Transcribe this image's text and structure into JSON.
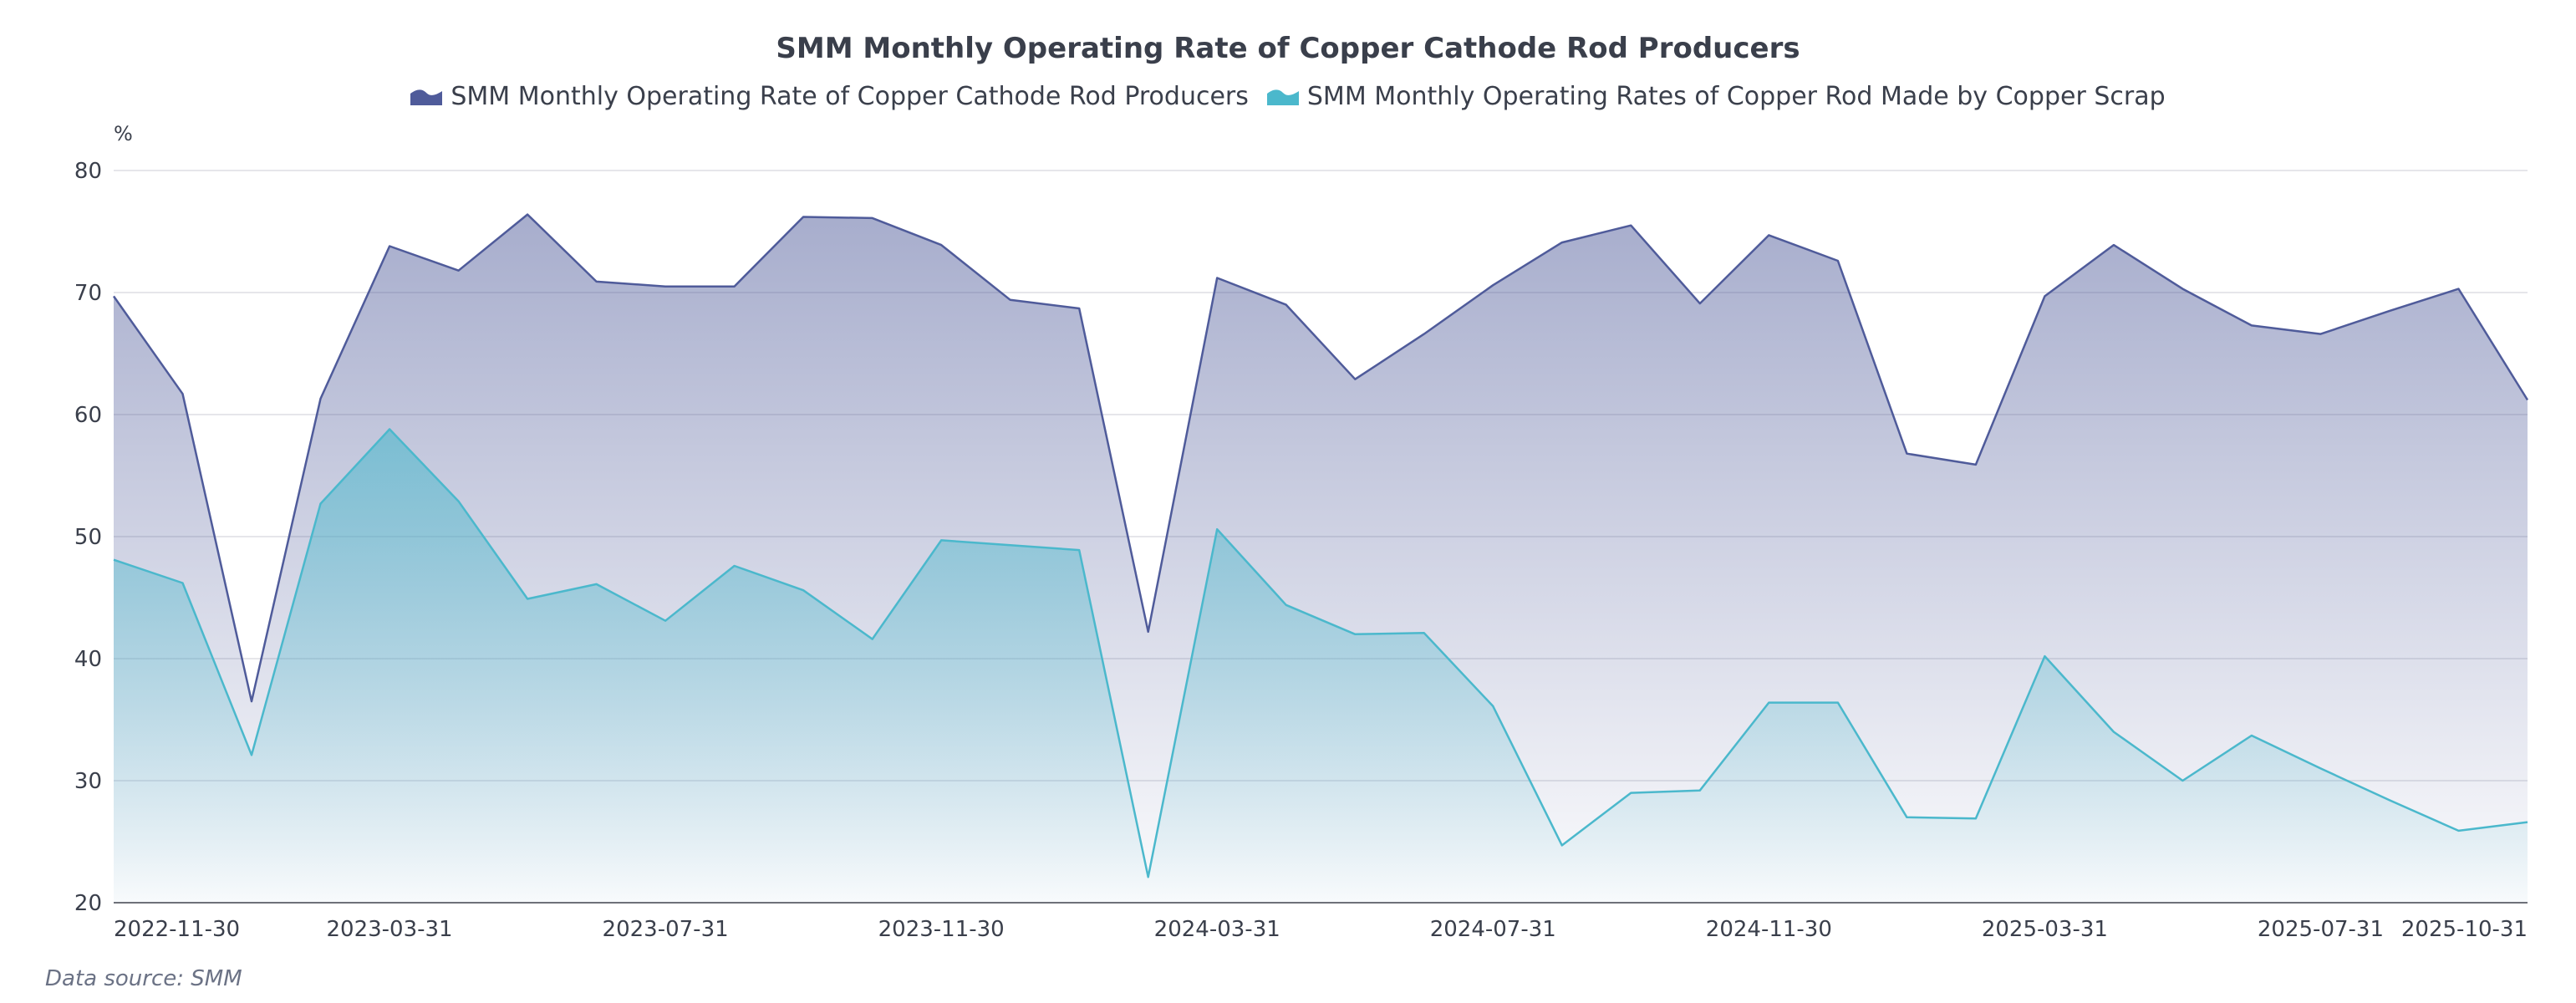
{
  "chart_data": {
    "type": "area",
    "title": "SMM Monthly Operating Rate of Copper Cathode Rod Producers",
    "ylabel": "%",
    "xlabel": "",
    "ylim": [
      20,
      80
    ],
    "yticks": [
      20,
      30,
      40,
      50,
      60,
      70,
      80
    ],
    "grid": true,
    "legend_position": "top-center",
    "source": "Data source:  SMM",
    "x": [
      "2022-11-30",
      "2022-12-31",
      "2023-01-31",
      "2023-02-28",
      "2023-03-31",
      "2023-04-30",
      "2023-05-31",
      "2023-06-30",
      "2023-07-31",
      "2023-08-31",
      "2023-09-30",
      "2023-10-31",
      "2023-11-30",
      "2023-12-31",
      "2024-01-31",
      "2024-02-29",
      "2024-03-31",
      "2024-04-30",
      "2024-05-31",
      "2024-06-30",
      "2024-07-31",
      "2024-08-31",
      "2024-09-30",
      "2024-10-31",
      "2024-11-30",
      "2024-12-31",
      "2025-01-31",
      "2025-02-28",
      "2025-03-31",
      "2025-04-30",
      "2025-05-31",
      "2025-06-30",
      "2025-07-31",
      "2025-08-31",
      "2025-09-30",
      "2025-10-31"
    ],
    "xtick_labels": [
      "2022-11-30",
      "2023-03-31",
      "2023-07-31",
      "2023-11-30",
      "2024-03-31",
      "2024-07-31",
      "2024-11-30",
      "2025-03-31",
      "2025-07-31",
      "2025-10-31"
    ],
    "series": [
      {
        "name": "SMM Monthly Operating Rate of Copper Cathode Rod Producers",
        "color": "#4f5b9a",
        "values": [
          69.7,
          61.7,
          36.5,
          61.3,
          73.8,
          71.8,
          76.4,
          70.9,
          70.5,
          70.5,
          76.2,
          76.1,
          73.9,
          69.4,
          68.7,
          42.2,
          71.2,
          69.0,
          62.9,
          66.6,
          70.6,
          74.1,
          75.5,
          69.1,
          74.7,
          72.6,
          56.8,
          55.9,
          69.7,
          73.9,
          70.3,
          67.3,
          66.6,
          68.5,
          70.3,
          61.2
        ]
      },
      {
        "name": "SMM Monthly Operating Rates of Copper Rod Made by Copper Scrap",
        "color": "#4bb8cc",
        "values": [
          48.1,
          46.2,
          32.1,
          52.7,
          58.8,
          52.9,
          44.9,
          46.1,
          43.1,
          47.6,
          45.6,
          41.6,
          49.7,
          49.3,
          48.9,
          22.1,
          50.6,
          44.4,
          42.0,
          42.1,
          36.1,
          24.7,
          29.0,
          29.2,
          36.4,
          36.4,
          27.0,
          26.9,
          40.2,
          34.0,
          30.0,
          33.7,
          31.0,
          28.4,
          25.9,
          26.6
        ]
      }
    ]
  }
}
